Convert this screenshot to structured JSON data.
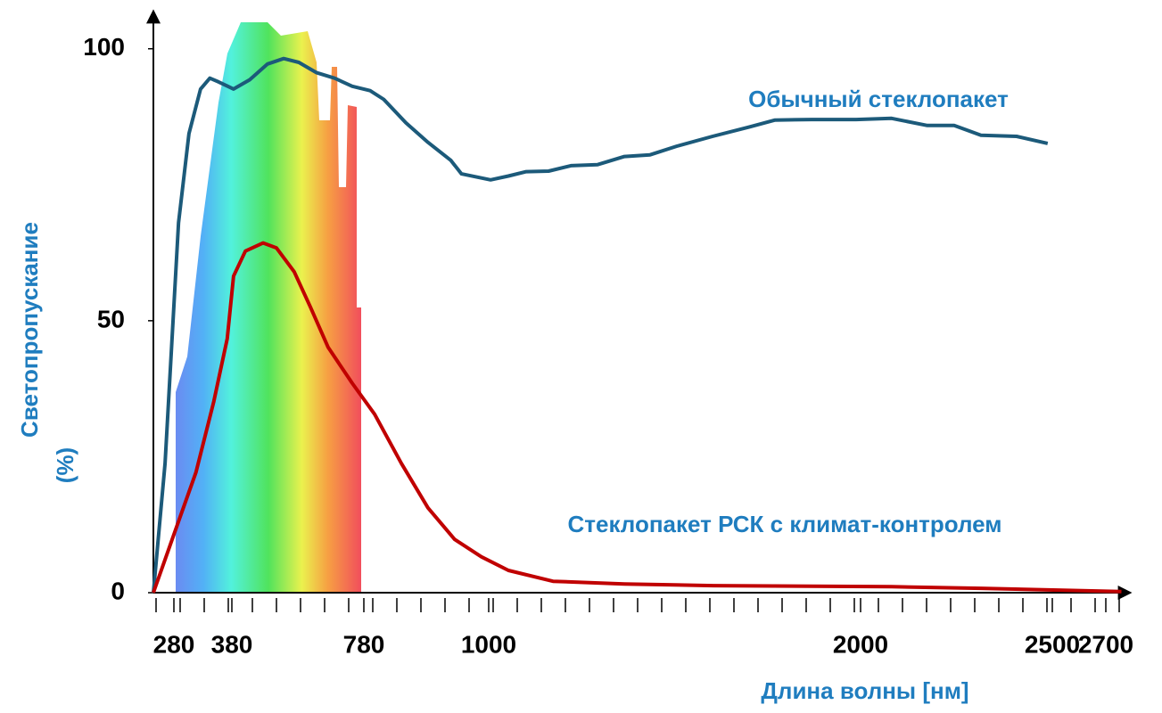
{
  "chart_data": {
    "type": "line",
    "x_label": "Длина волны [нм]",
    "y_label_lines": [
      "Светопропускание",
      "(%)"
    ],
    "xlim": [
      245,
      2780
    ],
    "xticks": [
      280,
      380,
      780,
      1000,
      2000,
      2500,
      2700
    ],
    "ylim": [
      0,
      107
    ],
    "yticks": [
      0,
      50,
      100
    ],
    "series": [
      {
        "name": "Обычный стеклопакет",
        "color": "#1c5a7a",
        "x": [
          245,
          265,
          288,
          306,
          326,
          342,
          357,
          385,
          434,
          488,
          537,
          583,
          637,
          691,
          745,
          791,
          815,
          854,
          893,
          933,
          952,
          1005,
          1053,
          1101,
          1161,
          1221,
          1293,
          1365,
          1434,
          1506,
          1602,
          1700,
          1770,
          1868,
          1988,
          2081,
          2174,
          2244,
          2314,
          2407,
          2488
        ],
        "values": [
          0,
          23.8,
          68.0,
          84.4,
          92.6,
          94.6,
          93.9,
          92.6,
          94.3,
          97.2,
          98.2,
          97.5,
          95.6,
          94.6,
          93.1,
          92.3,
          90.7,
          86.4,
          82.8,
          79.5,
          77.0,
          75.9,
          76.6,
          77.4,
          77.5,
          78.5,
          78.7,
          80.2,
          80.5,
          82.1,
          83.9,
          85.6,
          86.9,
          87.0,
          87.0,
          87.2,
          85.9,
          85.9,
          84.1,
          83.9,
          82.6
        ]
      },
      {
        "name": "Стеклопакет РСК с климат-контролем",
        "color": "#c00000",
        "x": [
          245,
          280,
          318,
          349,
          372,
          385,
          421,
          475,
          515,
          569,
          618,
          672,
          745,
          799,
          846,
          893,
          940,
          987,
          1053,
          1173,
          1365,
          1604,
          2081,
          2314,
          2750
        ],
        "values": [
          0,
          10.7,
          22.1,
          35.2,
          46.7,
          58.2,
          62.8,
          64.3,
          63.4,
          59.0,
          52.5,
          45.1,
          38.5,
          32.8,
          23.8,
          15.6,
          9.8,
          6.6,
          4.1,
          2.1,
          1.6,
          1.3,
          1.1,
          0.8,
          0.2
        ]
      }
    ]
  }
}
